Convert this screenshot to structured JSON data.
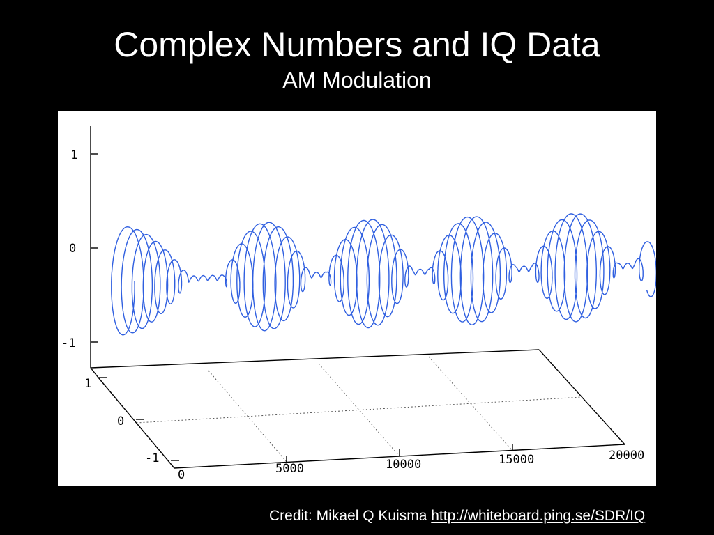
{
  "slide": {
    "title": "Complex Numbers and IQ  Data",
    "subtitle": "AM Modulation"
  },
  "credit": {
    "prefix": "Credit: Mikael Q Kuisma",
    "link": "http://whiteboard.ping.se/SDR/IQ"
  },
  "chart_data": {
    "type": "line",
    "projection": "3d",
    "series": [
      {
        "description_free": true,
        "samples": 20000,
        "x_range": [
          0,
          18000
        ],
        "bursts": [
          {
            "start": 0,
            "end": 2400
          },
          {
            "start": 3600,
            "end": 6600
          },
          {
            "start": 7200,
            "end": 10200
          },
          {
            "start": 10800,
            "end": 13800
          },
          {
            "start": 14400,
            "end": 17400
          },
          {
            "start": 18000,
            "end": 21000
          }
        ],
        "peak_amplitude": 1,
        "baseline_amplitude": 0.05
      }
    ],
    "axes": {
      "x": {
        "range": [
          0,
          20000
        ],
        "ticks": [
          "0",
          "5000",
          "10000",
          "15000",
          "20000"
        ]
      },
      "y": {
        "range": [
          -1,
          1
        ],
        "ticks": [
          "-1",
          "0",
          "1"
        ]
      },
      "z": {
        "range": [
          -1,
          1
        ],
        "ticks": [
          "-1",
          "0",
          "1"
        ]
      }
    },
    "grid": true,
    "line_color": "#2f5fe0"
  }
}
